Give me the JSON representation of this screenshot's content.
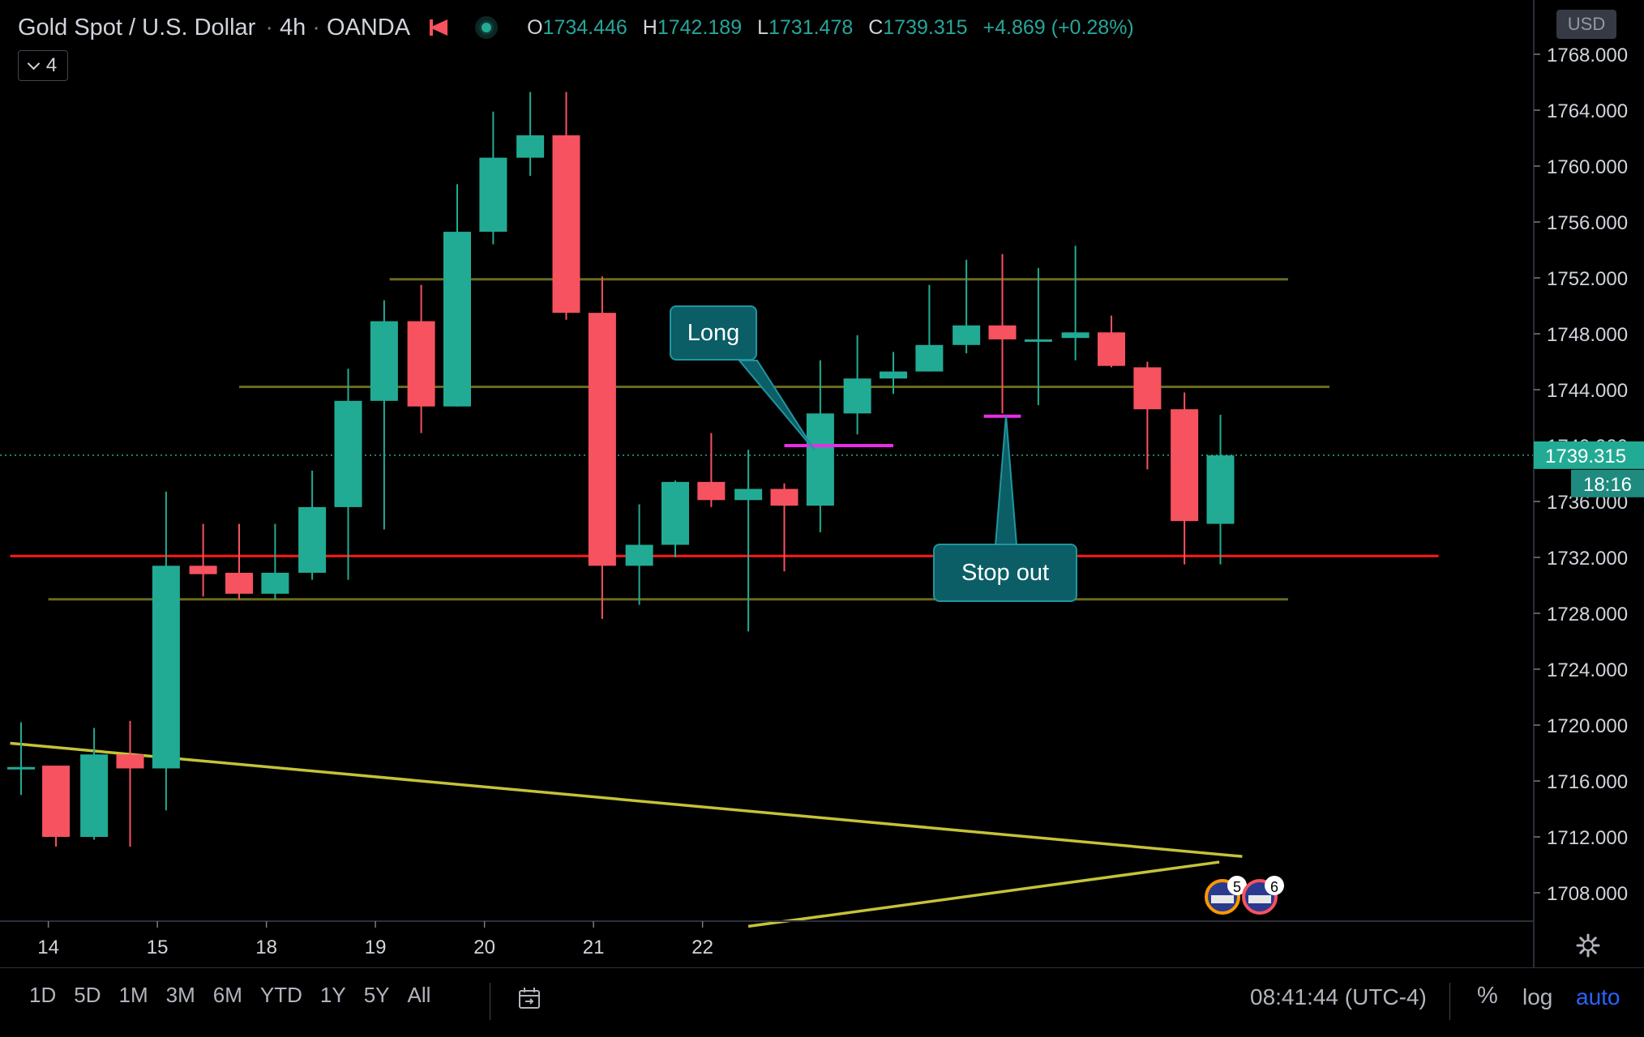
{
  "header": {
    "symbol": "Gold Spot / U.S. Dollar",
    "interval": "4h",
    "broker": "OANDA",
    "ohlc": {
      "o_label": "O",
      "o": "1734.446",
      "h_label": "H",
      "h": "1742.189",
      "l_label": "L",
      "l": "1731.478",
      "c_label": "C",
      "c": "1739.315",
      "change": "+4.869 (+0.28%)"
    },
    "indicator_count": "4",
    "currency": "USD"
  },
  "price_axis": {
    "last_price": "1739.315",
    "countdown": "18:16"
  },
  "time_axis_labels": [
    "14",
    "15",
    "18",
    "19",
    "20",
    "21",
    "22"
  ],
  "annotations": {
    "long": "Long",
    "stop_out": "Stop out"
  },
  "event_badges": [
    "5",
    "6"
  ],
  "bottom_toolbar": {
    "ranges": [
      "1D",
      "5D",
      "1M",
      "3M",
      "6M",
      "YTD",
      "1Y",
      "5Y",
      "All"
    ],
    "clock": "08:41:44 (UTC-4)",
    "percent": "%",
    "log": "log",
    "auto": "auto"
  },
  "colors": {
    "up": "#22ab94",
    "down": "#f7525f",
    "support_red": "#ff1a1a",
    "level_lines": "#6b6a1e",
    "trendline": "#c5c23a",
    "marker": "#e52ee5",
    "note_bg": "#0b5e66"
  },
  "chart_data": {
    "type": "candlestick",
    "y_ticks": [
      1708,
      1712,
      1716,
      1720,
      1724,
      1728,
      1732,
      1736,
      1740,
      1744,
      1748,
      1752,
      1756,
      1760,
      1764,
      1768
    ],
    "ylim": [
      1705.5,
      1770.3
    ],
    "candles": [
      {
        "t": 0.0,
        "o": 1717.0,
        "h": 1720.2,
        "l": 1715.0,
        "c": 1717.0
      },
      {
        "t": 0.32,
        "o": 1717.1,
        "h": 1717.1,
        "l": 1711.3,
        "c": 1712.0
      },
      {
        "t": 0.67,
        "o": 1712.0,
        "h": 1719.8,
        "l": 1711.8,
        "c": 1717.9
      },
      {
        "t": 1.0,
        "o": 1717.9,
        "h": 1720.3,
        "l": 1711.3,
        "c": 1716.9
      },
      {
        "t": 1.33,
        "o": 1716.9,
        "h": 1736.7,
        "l": 1713.9,
        "c": 1731.4
      },
      {
        "t": 1.67,
        "o": 1731.4,
        "h": 1734.4,
        "l": 1729.2,
        "c": 1730.8
      },
      {
        "t": 2.0,
        "o": 1730.9,
        "h": 1734.4,
        "l": 1729.0,
        "c": 1729.4
      },
      {
        "t": 2.33,
        "o": 1729.4,
        "h": 1734.4,
        "l": 1729.0,
        "c": 1730.9
      },
      {
        "t": 2.67,
        "o": 1730.9,
        "h": 1738.2,
        "l": 1730.4,
        "c": 1735.6
      },
      {
        "t": 3.0,
        "o": 1735.6,
        "h": 1745.5,
        "l": 1730.4,
        "c": 1743.2
      },
      {
        "t": 3.33,
        "o": 1743.2,
        "h": 1750.4,
        "l": 1734.0,
        "c": 1748.9
      },
      {
        "t": 3.67,
        "o": 1748.9,
        "h": 1751.5,
        "l": 1740.9,
        "c": 1742.8
      },
      {
        "t": 4.0,
        "o": 1742.8,
        "h": 1758.7,
        "l": 1742.8,
        "c": 1755.3
      },
      {
        "t": 4.33,
        "o": 1755.3,
        "h": 1763.9,
        "l": 1754.4,
        "c": 1760.6
      },
      {
        "t": 4.67,
        "o": 1760.6,
        "h": 1765.3,
        "l": 1759.3,
        "c": 1762.2
      },
      {
        "t": 5.0,
        "o": 1762.2,
        "h": 1765.3,
        "l": 1749.0,
        "c": 1749.5
      },
      {
        "t": 5.33,
        "o": 1749.5,
        "h": 1752.1,
        "l": 1727.6,
        "c": 1731.4
      },
      {
        "t": 5.67,
        "o": 1731.4,
        "h": 1735.8,
        "l": 1728.6,
        "c": 1732.9
      },
      {
        "t": 6.0,
        "o": 1732.9,
        "h": 1737.5,
        "l": 1732.0,
        "c": 1737.4
      },
      {
        "t": 6.33,
        "o": 1737.4,
        "h": 1740.9,
        "l": 1735.6,
        "c": 1736.1
      },
      {
        "t": 6.67,
        "o": 1736.1,
        "h": 1739.7,
        "l": 1726.7,
        "c": 1736.9
      },
      {
        "t": 7.0,
        "o": 1736.9,
        "h": 1737.3,
        "l": 1731.0,
        "c": 1735.7
      },
      {
        "t": 7.33,
        "o": 1735.7,
        "h": 1746.1,
        "l": 1733.8,
        "c": 1742.3
      },
      {
        "t": 7.67,
        "o": 1742.3,
        "h": 1747.9,
        "l": 1740.8,
        "c": 1744.8
      },
      {
        "t": 8.0,
        "o": 1744.8,
        "h": 1746.7,
        "l": 1743.7,
        "c": 1745.3
      },
      {
        "t": 8.33,
        "o": 1745.3,
        "h": 1751.5,
        "l": 1745.3,
        "c": 1747.2
      },
      {
        "t": 8.67,
        "o": 1747.2,
        "h": 1753.3,
        "l": 1746.6,
        "c": 1748.6
      },
      {
        "t": 9.0,
        "o": 1748.6,
        "h": 1753.7,
        "l": 1742.3,
        "c": 1747.6
      },
      {
        "t": 9.33,
        "o": 1747.6,
        "h": 1752.7,
        "l": 1742.9,
        "c": 1747.6
      },
      {
        "t": 9.67,
        "o": 1747.7,
        "h": 1754.3,
        "l": 1746.1,
        "c": 1748.1
      },
      {
        "t": 10.0,
        "o": 1748.1,
        "h": 1749.3,
        "l": 1745.6,
        "c": 1745.7
      },
      {
        "t": 10.33,
        "o": 1745.6,
        "h": 1746.0,
        "l": 1738.3,
        "c": 1742.6
      },
      {
        "t": 10.67,
        "o": 1742.6,
        "h": 1743.8,
        "l": 1731.5,
        "c": 1734.6
      },
      {
        "t": 11.0,
        "o": 1734.4,
        "h": 1742.2,
        "l": 1731.5,
        "c": 1739.3
      }
    ],
    "horizontal_levels": [
      {
        "price": 1751.9,
        "t_from": 3.38,
        "t_to": 11.62
      },
      {
        "price": 1744.2,
        "t_from": 2.0,
        "t_to": 12.0
      },
      {
        "price": 1729.0,
        "t_from": 0.25,
        "t_to": 11.62
      },
      {
        "price": 1732.1,
        "t_from": -0.1,
        "t_to": 13.0,
        "color": "red"
      }
    ],
    "current_price": 1739.315,
    "trendlines": [
      {
        "t1": -0.1,
        "p1": 1718.7,
        "t2": 11.2,
        "p2": 1710.6
      },
      {
        "t1": 6.67,
        "p1": 1705.6,
        "t2": 10.99,
        "p2": 1710.2
      }
    ],
    "markers": [
      {
        "t_from": 7.0,
        "t_to": 8.0,
        "price": 1740.0,
        "label": "Long"
      },
      {
        "t_from": 8.83,
        "t_to": 9.17,
        "price": 1742.1,
        "label": "Stop out"
      }
    ],
    "x_tick_positions": [
      0.25,
      1.25,
      2.25,
      3.25,
      4.25,
      5.25,
      6.25
    ]
  }
}
